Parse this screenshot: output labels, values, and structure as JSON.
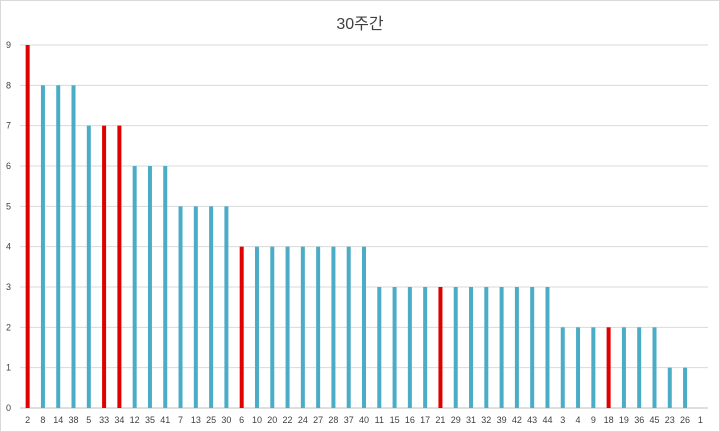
{
  "chart_data": {
    "type": "bar",
    "title": "30주간",
    "xlabel": "",
    "ylabel": "",
    "ylim": [
      0,
      9
    ],
    "yticks": [
      0,
      1,
      2,
      3,
      4,
      5,
      6,
      7,
      8,
      9
    ],
    "grid": true,
    "legend": "none",
    "categories": [
      "2",
      "8",
      "14",
      "38",
      "5",
      "33",
      "34",
      "12",
      "35",
      "41",
      "7",
      "13",
      "25",
      "30",
      "6",
      "10",
      "20",
      "22",
      "24",
      "27",
      "28",
      "37",
      "40",
      "11",
      "15",
      "16",
      "17",
      "21",
      "29",
      "31",
      "32",
      "39",
      "42",
      "43",
      "44",
      "3",
      "4",
      "9",
      "18",
      "19",
      "36",
      "45",
      "23",
      "26",
      "1"
    ],
    "values": [
      9,
      8,
      8,
      8,
      7,
      7,
      7,
      6,
      6,
      6,
      5,
      5,
      5,
      5,
      4,
      4,
      4,
      4,
      4,
      4,
      4,
      4,
      4,
      3,
      3,
      3,
      3,
      3,
      3,
      3,
      3,
      3,
      3,
      3,
      3,
      2,
      2,
      2,
      2,
      2,
      2,
      2,
      1,
      1,
      0
    ],
    "highlighted": [
      "2",
      "33",
      "34",
      "6",
      "21",
      "18"
    ],
    "colors": {
      "bar": "#4bacc6",
      "highlight": "#e00000",
      "grid": "#d9d9d9",
      "axis": "#bfbfbf"
    }
  }
}
